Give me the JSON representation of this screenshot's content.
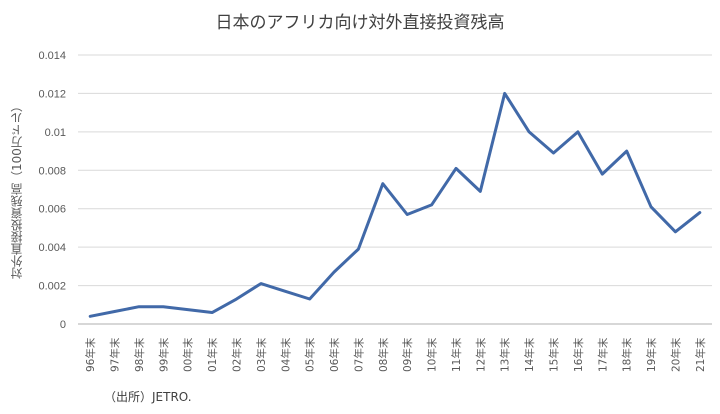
{
  "chart_data": {
    "type": "line",
    "title": "日本のアフリカ向け対外直接投資残高",
    "xlabel": "",
    "ylabel": "対外直接投資残高（100万ドル）",
    "source": "（出所）JETRO.",
    "ylim": [
      0,
      0.014
    ],
    "yticks": [
      "0",
      "0.002",
      "0.004",
      "0.006",
      "0.008",
      "0.01",
      "0.012",
      "0.014"
    ],
    "grid": true,
    "legend": "none",
    "line_color": "#4169A8",
    "categories": [
      "96年末",
      "97年末",
      "98年末",
      "99年末",
      "00年末",
      "01年末",
      "02年末",
      "03年末",
      "04年末",
      "05年末",
      "06年末",
      "07年末",
      "08年末",
      "09年末",
      "10年末",
      "11年末",
      "12年末",
      "13年末",
      "14年末",
      "15年末",
      "16年末",
      "17年末",
      "18年末",
      "19年末",
      "20年末",
      "21年末"
    ],
    "series": [
      {
        "name": "対外直接投資残高",
        "values": [
          0.0004,
          0.00065,
          0.0009,
          0.0009,
          0.00075,
          0.0006,
          0.0013,
          0.0021,
          0.0017,
          0.0013,
          0.0027,
          0.0039,
          0.0073,
          0.0057,
          0.0062,
          0.0081,
          0.0069,
          0.012,
          0.01,
          0.0089,
          0.01,
          0.0078,
          0.009,
          0.0061,
          0.0048,
          0.0058
        ]
      }
    ]
  }
}
